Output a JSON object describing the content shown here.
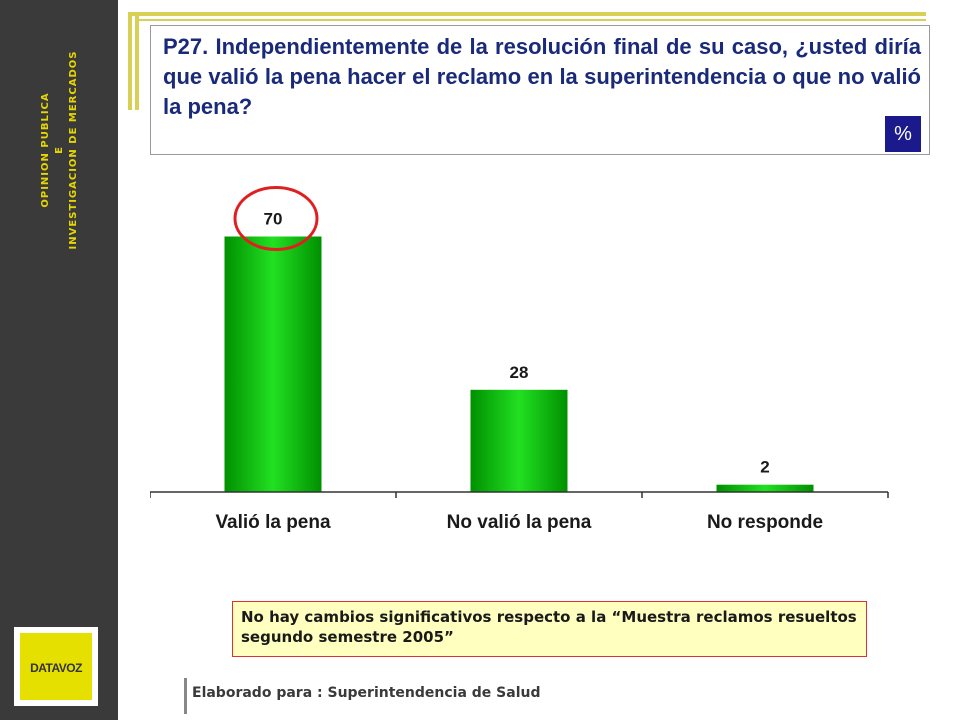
{
  "sidebar": {
    "line1": "OPINION PUBLICA",
    "line2": "E",
    "line3": "INVESTIGACION DE MERCADOS"
  },
  "logo": {
    "text": "DATAVOZ"
  },
  "question": {
    "text": "P27. Independientemente de la resolución final de su caso, ¿usted diría que valió la pena hacer el reclamo en la superintendencia  o que no valió la pena?",
    "unit": "%"
  },
  "chart_data": {
    "type": "bar",
    "categories": [
      "Valió la pena",
      "No valió la pena",
      "No responde"
    ],
    "values": [
      70,
      28,
      2
    ],
    "ylim": [
      0,
      80
    ],
    "grid": false,
    "highlight_index": 0,
    "colors": {
      "bar": "#00c000",
      "highlight_circle": "#e02020"
    }
  },
  "note": "No hay cambios significativos respecto a la  “Muestra reclamos resueltos segundo semestre 2005”",
  "footer": "Elaborado para : Superintendencia de Salud"
}
